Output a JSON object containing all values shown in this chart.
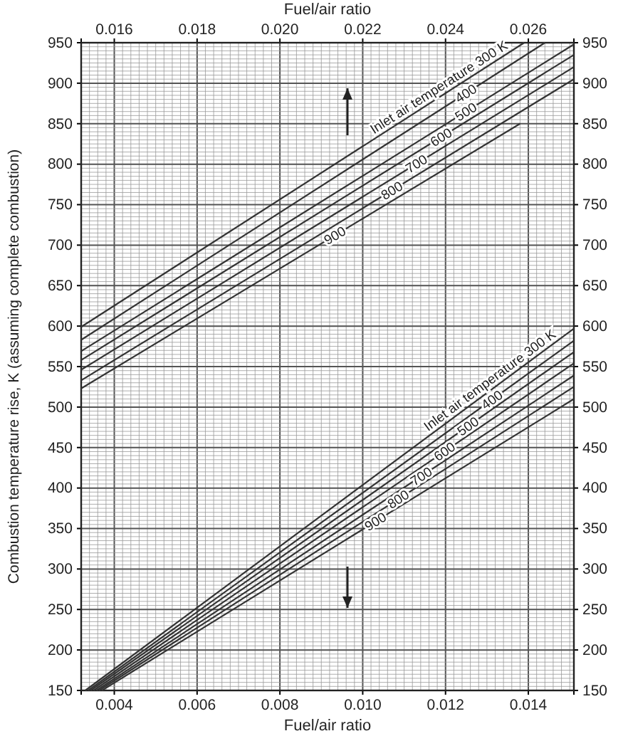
{
  "chart_data": {
    "type": "line",
    "xlabel": "Fuel/air ratio",
    "x2label": "Fuel/air ratio",
    "ylabel": "Combustion temperature rise, K (assuming complete combustion)",
    "xlim": [
      0.0032,
      0.0151
    ],
    "x2lim": [
      0.0152,
      0.0271
    ],
    "ylim": [
      150,
      950
    ],
    "y2lim": [
      150,
      950
    ],
    "xticks": [
      {
        "value": 0.004,
        "label": "0.004"
      },
      {
        "value": 0.006,
        "label": "0.006"
      },
      {
        "value": 0.008,
        "label": "0.008"
      },
      {
        "value": 0.01,
        "label": "0.010"
      },
      {
        "value": 0.012,
        "label": "0.012"
      },
      {
        "value": 0.014,
        "label": "0.014"
      }
    ],
    "x2ticks": [
      {
        "value": 0.016,
        "label": "0.016"
      },
      {
        "value": 0.018,
        "label": "0.018"
      },
      {
        "value": 0.02,
        "label": "0.020"
      },
      {
        "value": 0.022,
        "label": "0.022"
      },
      {
        "value": 0.024,
        "label": "0.024"
      },
      {
        "value": 0.026,
        "label": "0.026"
      }
    ],
    "yticks": [
      150,
      200,
      250,
      300,
      350,
      400,
      450,
      500,
      550,
      600,
      650,
      700,
      750,
      800,
      850,
      900,
      950
    ],
    "y2ticks": [
      150,
      200,
      250,
      300,
      350,
      400,
      450,
      500,
      550,
      600,
      650,
      700,
      750,
      800,
      850,
      900,
      950
    ],
    "grid": true,
    "marker": "none",
    "line_style": "solid",
    "series": [
      {
        "name": "Inlet air temperature  300 K",
        "color": "#333333",
        "axis": "x2",
        "x": [
          0.0152,
          0.0259
        ],
        "values": [
          599,
          950
        ]
      },
      {
        "name": "400",
        "color": "#333333",
        "axis": "x2",
        "x": [
          0.0152,
          0.0264
        ],
        "values": [
          583,
          950
        ]
      },
      {
        "name": "500",
        "color": "#333333",
        "axis": "x2",
        "x": [
          0.0152,
          0.0271
        ],
        "values": [
          569,
          948
        ]
      },
      {
        "name": "600",
        "color": "#333333",
        "axis": "x2",
        "x": [
          0.0152,
          0.0271
        ],
        "values": [
          558,
          935
        ]
      },
      {
        "name": "700",
        "color": "#333333",
        "axis": "x2",
        "x": [
          0.0152,
          0.0271
        ],
        "values": [
          546,
          920
        ]
      },
      {
        "name": "800",
        "color": "#333333",
        "axis": "x2",
        "x": [
          0.0152,
          0.0271
        ],
        "values": [
          533,
          905
        ]
      },
      {
        "name": "900",
        "color": "#333333",
        "axis": "x2",
        "x": [
          0.0152,
          0.0258
        ],
        "values": [
          523,
          850
        ]
      },
      {
        "name": "Inlet air temperature  300 K",
        "color": "#333333",
        "x": [
          0.0033,
          0.0151
        ],
        "values": [
          150,
          597
        ]
      },
      {
        "name": "400",
        "color": "#333333",
        "x": [
          0.00337,
          0.0151
        ],
        "values": [
          150,
          582
        ]
      },
      {
        "name": "500",
        "color": "#333333",
        "x": [
          0.00343,
          0.0151
        ],
        "values": [
          150,
          568
        ]
      },
      {
        "name": "600",
        "color": "#333333",
        "x": [
          0.0035,
          0.0151
        ],
        "values": [
          150,
          554
        ]
      },
      {
        "name": "700",
        "color": "#333333",
        "x": [
          0.00357,
          0.0151
        ],
        "values": [
          150,
          539
        ]
      },
      {
        "name": "800",
        "color": "#333333",
        "x": [
          0.00363,
          0.0151
        ],
        "values": [
          150,
          525
        ]
      },
      {
        "name": "900",
        "color": "#333333",
        "x": [
          0.0037,
          0.0151
        ],
        "values": [
          150,
          510
        ]
      }
    ]
  }
}
